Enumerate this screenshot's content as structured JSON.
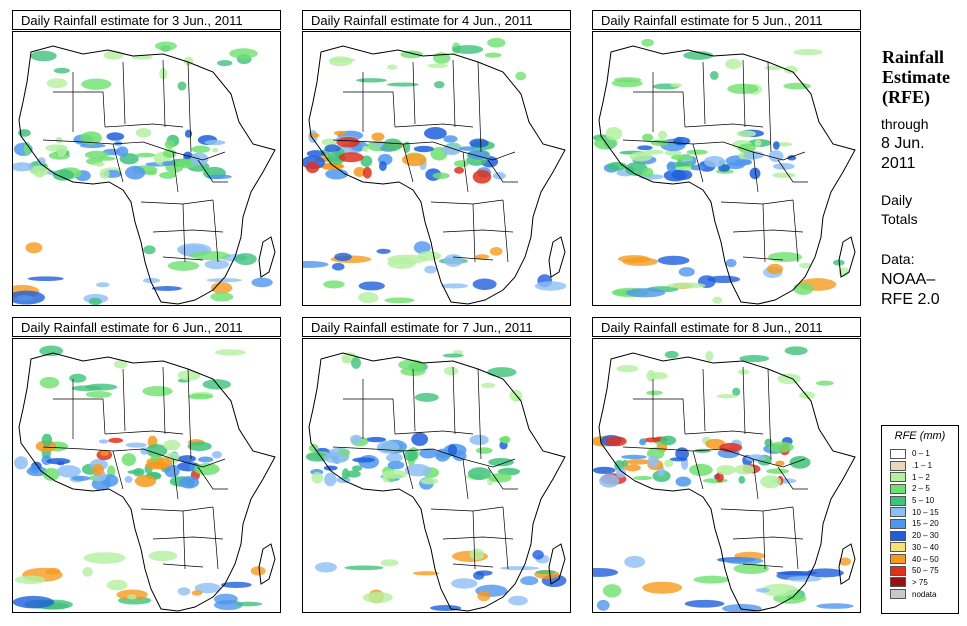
{
  "panels": [
    {
      "title": "Daily Rainfall estimate for  3 Jun., 2011"
    },
    {
      "title": "Daily Rainfall estimate for  4 Jun., 2011"
    },
    {
      "title": "Daily Rainfall estimate for  5 Jun., 2011"
    },
    {
      "title": "Daily Rainfall estimate for  6 Jun., 2011"
    },
    {
      "title": "Daily Rainfall estimate for  7 Jun., 2011"
    },
    {
      "title": "Daily Rainfall estimate for  8 Jun., 2011"
    }
  ],
  "side": {
    "title_line1": "Rainfall",
    "title_line2": "Estimate",
    "title_line3": "(RFE)",
    "through": "through",
    "date_line1": "8 Jun.",
    "date_line2": "2011",
    "daily": "Daily",
    "totals": "Totals",
    "data_label": "Data:",
    "source_line1": "NOAA–",
    "source_line2": "RFE 2.0"
  },
  "legend": {
    "title": "RFE (mm)",
    "items": [
      {
        "label": "0 – 1",
        "color": "#ffffff"
      },
      {
        "label": ".1 – 1",
        "color": "#e8d6bd"
      },
      {
        "label": "1 – 2",
        "color": "#b4f0a0"
      },
      {
        "label": "2 – 5",
        "color": "#6fe06f"
      },
      {
        "label": "5 – 10",
        "color": "#3fc27a"
      },
      {
        "label": "10 – 15",
        "color": "#8fbef5"
      },
      {
        "label": "15 – 20",
        "color": "#4f96ee"
      },
      {
        "label": "20 – 30",
        "color": "#1f5fdc"
      },
      {
        "label": "30 – 40",
        "color": "#f6e27a"
      },
      {
        "label": "40 – 50",
        "color": "#f59a1e"
      },
      {
        "label": "50 – 75",
        "color": "#e0301e"
      },
      {
        "label": "> 75",
        "color": "#9a1010"
      },
      {
        "label": "nodata",
        "color": "#c8c8c8"
      }
    ]
  }
}
